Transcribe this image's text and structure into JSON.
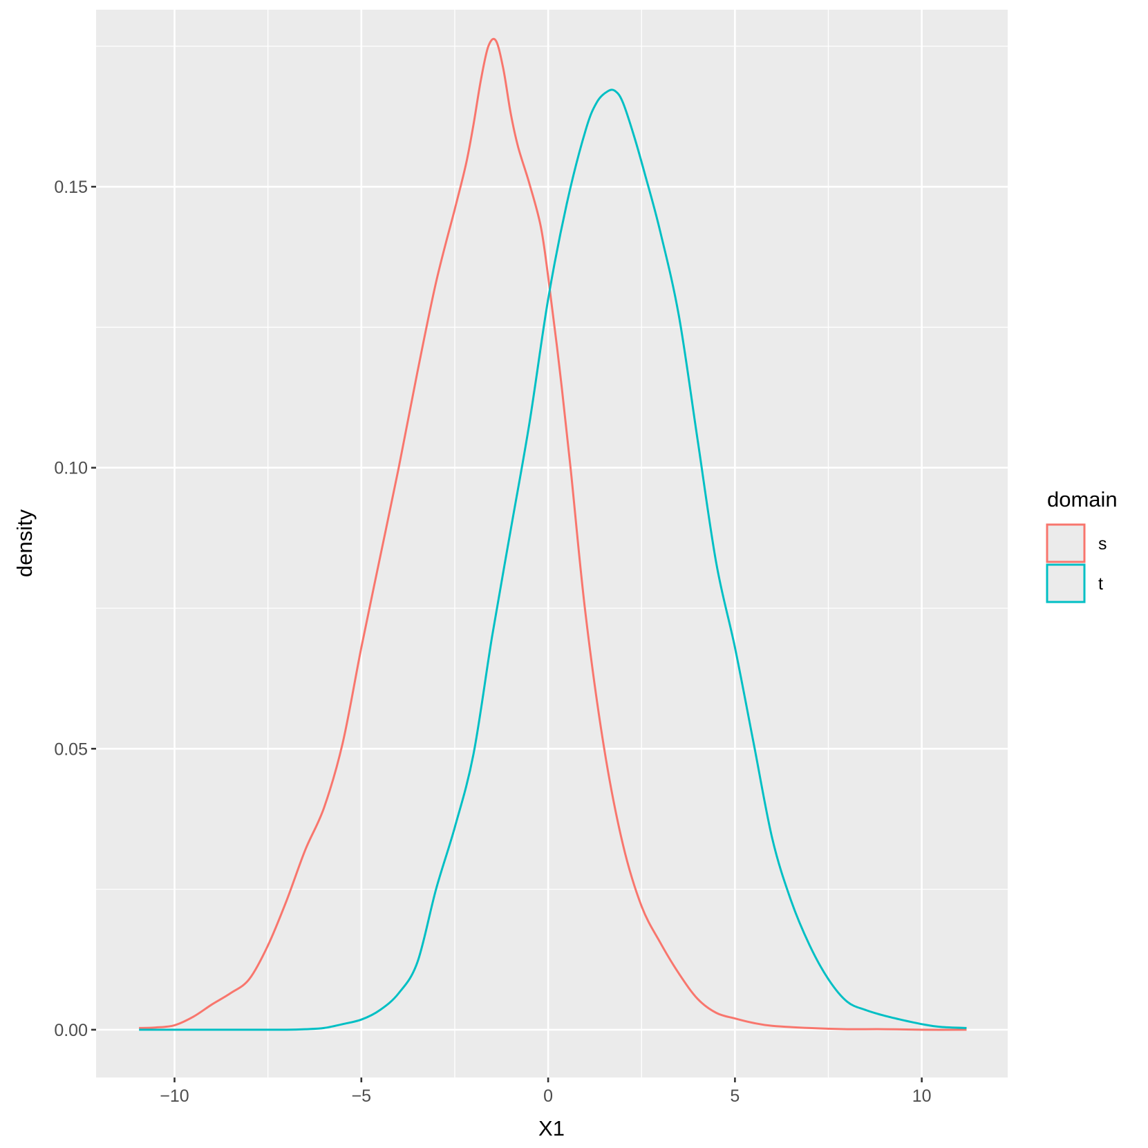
{
  "chart_data": {
    "type": "line",
    "title": "",
    "xlabel": "X1",
    "ylabel": "density",
    "xlim": [
      -12.1,
      12.3
    ],
    "ylim": [
      -0.0085,
      0.1815
    ],
    "x_ticks": [
      -10,
      -5,
      0,
      5,
      10
    ],
    "x_tick_labels": [
      "−10",
      "−5",
      "0",
      "5",
      "10"
    ],
    "x_minor": [
      -7.5,
      -2.5,
      2.5,
      7.5
    ],
    "y_ticks": [
      0.0,
      0.05,
      0.1,
      0.15
    ],
    "y_tick_labels": [
      "0.00",
      "0.05",
      "0.10",
      "0.15"
    ],
    "y_minor": [
      0.025,
      0.075,
      0.125,
      0.175
    ],
    "grid": true,
    "legend": {
      "title": "domain",
      "position": "right"
    },
    "series": [
      {
        "name": "s",
        "color": "#f8766d",
        "x": [
          -10.95,
          -10.5,
          -10.0,
          -9.5,
          -9.0,
          -8.5,
          -8.0,
          -7.5,
          -7.0,
          -6.5,
          -6.0,
          -5.5,
          -5.0,
          -4.5,
          -4.0,
          -3.5,
          -3.0,
          -2.5,
          -2.2,
          -2.0,
          -1.8,
          -1.6,
          -1.4,
          -1.2,
          -1.0,
          -0.8,
          -0.5,
          -0.2,
          0.0,
          0.3,
          0.6,
          1.0,
          1.5,
          2.0,
          2.5,
          3.0,
          3.5,
          4.0,
          4.5,
          5.0,
          5.5,
          6.0,
          7.0,
          8.0,
          9.0,
          10.0,
          11.2
        ],
        "values": [
          0.0003,
          0.0004,
          0.0008,
          0.0023,
          0.0045,
          0.0065,
          0.009,
          0.015,
          0.023,
          0.032,
          0.0395,
          0.051,
          0.068,
          0.084,
          0.1,
          0.117,
          0.133,
          0.146,
          0.154,
          0.161,
          0.169,
          0.175,
          0.176,
          0.171,
          0.163,
          0.157,
          0.1505,
          0.143,
          0.134,
          0.118,
          0.1,
          0.074,
          0.05,
          0.033,
          0.022,
          0.0155,
          0.01,
          0.0055,
          0.003,
          0.002,
          0.0012,
          0.0007,
          0.0003,
          0.0001,
          0.0001,
          0.0,
          0.0
        ]
      },
      {
        "name": "t",
        "color": "#00bfc4",
        "x": [
          -10.95,
          -9.0,
          -8.0,
          -7.0,
          -6.5,
          -6.0,
          -5.5,
          -5.0,
          -4.5,
          -4.0,
          -3.5,
          -3.0,
          -2.5,
          -2.0,
          -1.5,
          -1.0,
          -0.5,
          0.0,
          0.5,
          1.0,
          1.3,
          1.6,
          1.8,
          2.0,
          2.3,
          2.6,
          3.0,
          3.5,
          4.0,
          4.5,
          5.0,
          5.5,
          6.0,
          6.5,
          7.0,
          7.5,
          8.0,
          8.5,
          9.0,
          9.5,
          10.0,
          10.5,
          11.2
        ],
        "values": [
          0.0,
          0.0,
          0.0,
          0.0,
          0.0001,
          0.0003,
          0.001,
          0.0018,
          0.0035,
          0.0065,
          0.012,
          0.025,
          0.036,
          0.049,
          0.07,
          0.089,
          0.108,
          0.13,
          0.147,
          0.16,
          0.165,
          0.167,
          0.167,
          0.165,
          0.159,
          0.152,
          0.142,
          0.127,
          0.105,
          0.083,
          0.068,
          0.051,
          0.034,
          0.023,
          0.015,
          0.009,
          0.005,
          0.0035,
          0.0025,
          0.0017,
          0.001,
          0.0005,
          0.0003
        ]
      }
    ]
  }
}
